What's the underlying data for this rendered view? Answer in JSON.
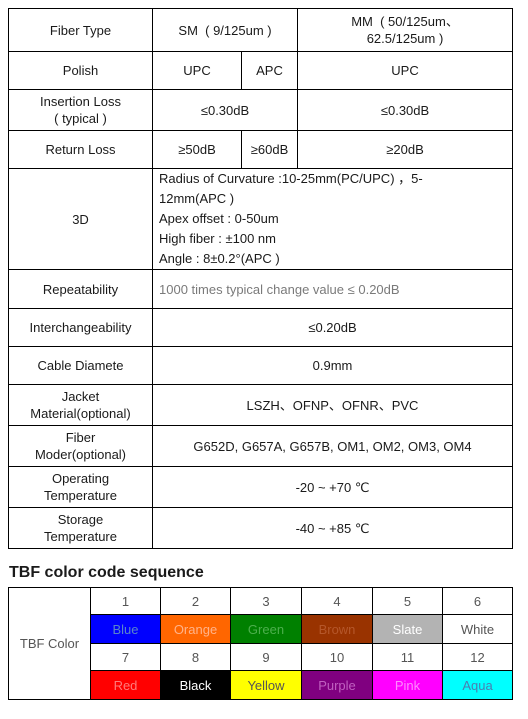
{
  "spec": {
    "fiber_type": {
      "label": "Fiber Type",
      "sm": "SM  ( 9/125um )",
      "mm_line1": "MM  ( 50/125um、",
      "mm_line2": "62.5/125um )"
    },
    "polish": {
      "label": "Polish",
      "sm_upc": "UPC",
      "sm_apc": "APC",
      "mm_upc": "UPC"
    },
    "insertion_loss": {
      "label_line1": "Insertion Loss",
      "label_line2": "( typical )",
      "sm": "≤0.30dB",
      "mm": "≤0.30dB"
    },
    "return_loss": {
      "label": "Return Loss",
      "upc": "≥50dB",
      "apc": "≥60dB",
      "mm": "≥20dB"
    },
    "geometry": {
      "label": "3D",
      "line1": "Radius of Curvature :10-25mm(PC/UPC) ，5-",
      "line2": "12mm(APC )",
      "line3": "Apex offset : 0-50um",
      "line4": "High fiber : ±100 nm",
      "line5": "Angle : 8±0.2°(APC )"
    },
    "repeatability": {
      "label": "Repeatability",
      "value": "1000 times typical change value ≤ 0.20dB"
    },
    "interchangeability": {
      "label": "Interchangeability",
      "value": "≤0.20dB"
    },
    "cable_diameter": {
      "label": "Cable Diamete",
      "value": "0.9mm"
    },
    "jacket": {
      "label_line1": "Jacket",
      "label_line2": "Material(optional)",
      "value": "LSZH、OFNP、OFNR、PVC"
    },
    "fiber_mode": {
      "label_line1": "Fiber",
      "label_line2": "Moder(optional)",
      "value": "G652D, G657A, G657B, OM1, OM2, OM3, OM4"
    },
    "operating_temp": {
      "label_line1": "Operating",
      "label_line2": "Temperature",
      "value": "-20 ~ +70 ℃"
    },
    "storage_temp": {
      "label_line1": "Storage",
      "label_line2": "Temperature",
      "value": "-40 ~ +85 ℃"
    }
  },
  "color_section": {
    "title": "TBF color code sequence",
    "row_label": "TBF Color",
    "colors": [
      {
        "num": "1",
        "name": "Blue",
        "bg": "#0000ff",
        "fg": "#5a86c8"
      },
      {
        "num": "2",
        "name": "Orange",
        "bg": "#ff6600",
        "fg": "#ffb38a"
      },
      {
        "num": "3",
        "name": "Green",
        "bg": "#008000",
        "fg": "#4caf4c"
      },
      {
        "num": "4",
        "name": "Brown",
        "bg": "#993300",
        "fg": "#b5572a"
      },
      {
        "num": "5",
        "name": "Slate",
        "bg": "#b3b3b3",
        "fg": "#ffffff"
      },
      {
        "num": "6",
        "name": "White",
        "bg": "#ffffff",
        "fg": "#555555"
      },
      {
        "num": "7",
        "name": "Red",
        "bg": "#ff0000",
        "fg": "#ff7a7a"
      },
      {
        "num": "8",
        "name": "Black",
        "bg": "#000000",
        "fg": "#ffffff"
      },
      {
        "num": "9",
        "name": "Yellow",
        "bg": "#ffff00",
        "fg": "#555555"
      },
      {
        "num": "10",
        "name": "Purple",
        "bg": "#800080",
        "fg": "#c060c0"
      },
      {
        "num": "11",
        "name": "Pink",
        "bg": "#ff00ff",
        "fg": "#ff8cff"
      },
      {
        "num": "12",
        "name": "Aqua",
        "bg": "#00ffff",
        "fg": "#4a7fb0"
      }
    ]
  }
}
